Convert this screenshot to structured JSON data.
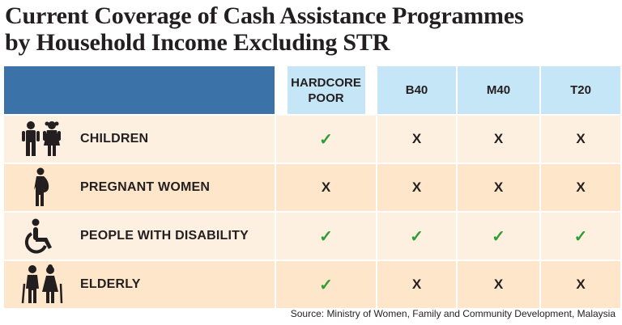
{
  "title": {
    "line1": "Current Coverage of Cash Assistance Programmes",
    "line2": "by Household Income Excluding STR"
  },
  "table": {
    "columns": [
      "HARDCORE POOR",
      "B40",
      "M40",
      "T20"
    ],
    "rows": [
      {
        "label": "CHILDREN",
        "icon": "children-icon",
        "values": [
          "✓",
          "X",
          "X",
          "X"
        ]
      },
      {
        "label": "PREGNANT WOMEN",
        "icon": "pregnant-woman-icon",
        "values": [
          "X",
          "X",
          "X",
          "X"
        ]
      },
      {
        "label": "PEOPLE WITH DISABILITY",
        "icon": "wheelchair-icon",
        "values": [
          "✓",
          "✓",
          "✓",
          "✓"
        ]
      },
      {
        "label": "ELDERLY",
        "icon": "elderly-icon",
        "values": [
          "✓",
          "X",
          "X",
          "X"
        ]
      }
    ]
  },
  "source": "Source: Ministry of Women, Family and Community Development, Malaysia",
  "colors": {
    "header_dark": "#3b73a8",
    "header_light": "#c5e6f7",
    "row_light": "#fdf0e0",
    "row_dark": "#fde6c9",
    "check": "#2e9e34"
  }
}
